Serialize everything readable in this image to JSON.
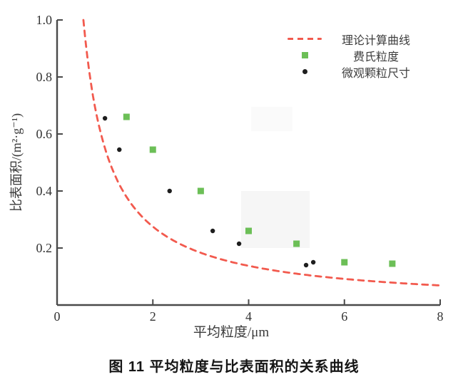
{
  "figure": {
    "caption": "图 11  平均粒度与比表面积的关系曲线"
  },
  "chart_data": {
    "type": "scatter",
    "title": "",
    "xlabel": "平均粒度/μm",
    "ylabel": "比表面积/(m²·g⁻¹)",
    "xlim": [
      0,
      8
    ],
    "ylim": [
      0,
      1.0
    ],
    "xticks": [
      "0",
      "2",
      "4",
      "6",
      "8"
    ],
    "yticks": [
      "0.2",
      "0.4",
      "0.6",
      "0.8",
      "1.0"
    ],
    "grid": false,
    "legend_position": "upper-right-inside",
    "series": [
      {
        "name": "理论计算曲线",
        "type": "line",
        "linestyle": "dashed",
        "color": "#f25a4e",
        "model": "y = k/x",
        "k": 0.55,
        "x_end": 8
      },
      {
        "name": "费氏粒度",
        "type": "scatter",
        "marker": "square",
        "color": "#6cbf57",
        "points": [
          [
            1.45,
            0.66
          ],
          [
            2.0,
            0.545
          ],
          [
            3.0,
            0.4
          ],
          [
            4.0,
            0.26
          ],
          [
            5.0,
            0.215
          ],
          [
            6.0,
            0.15
          ],
          [
            7.0,
            0.145
          ]
        ]
      },
      {
        "name": "微观颗粒尺寸",
        "type": "scatter",
        "marker": "circle",
        "color": "#1e1e1e",
        "points": [
          [
            1.0,
            0.655
          ],
          [
            1.3,
            0.545
          ],
          [
            2.35,
            0.4
          ],
          [
            3.25,
            0.26
          ],
          [
            3.8,
            0.215
          ],
          [
            5.2,
            0.14
          ],
          [
            5.35,
            0.15
          ]
        ]
      }
    ]
  }
}
